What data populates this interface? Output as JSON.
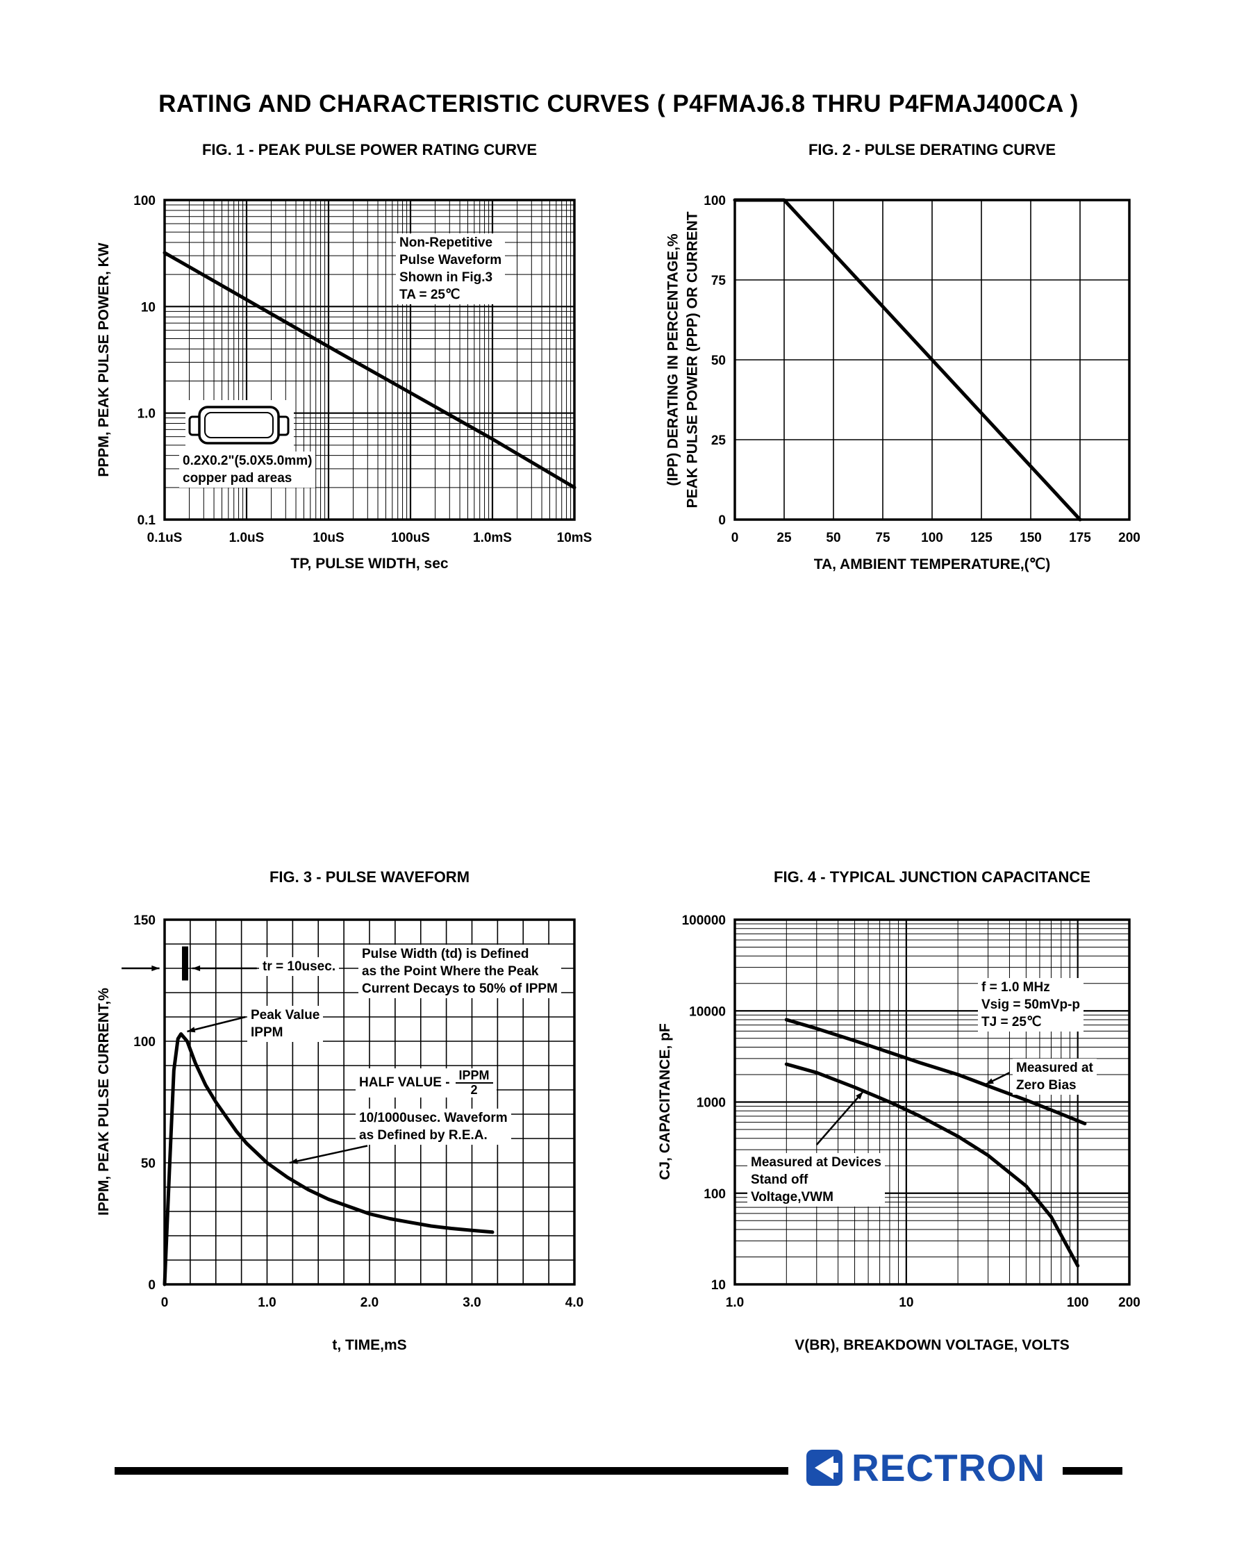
{
  "page": {
    "title": "RATING AND CHARACTERISTIC CURVES ( P4FMAJ6.8 THRU P4FMAJ400CA )"
  },
  "footer": {
    "brand": "RECTRON",
    "brand_color": "#1a4fae"
  },
  "chart_data": [
    {
      "id": "fig1",
      "type": "line",
      "title": "FIG. 1 - PEAK PULSE POWER RATING CURVE",
      "xlabel": "TP, PULSE WIDTH, sec",
      "ylabel": "PPPM, PEAK PULSE POWER, KW",
      "xscale": "log",
      "yscale": "log",
      "xlim": [
        1e-07,
        0.01
      ],
      "ylim": [
        0.1,
        100
      ],
      "grid": "log-minor",
      "legend": "none",
      "xticks": [
        {
          "v": 1e-07,
          "label": "0.1uS"
        },
        {
          "v": 1e-06,
          "label": "1.0uS"
        },
        {
          "v": 1e-05,
          "label": "10uS"
        },
        {
          "v": 0.0001,
          "label": "100uS"
        },
        {
          "v": 0.001,
          "label": "1.0mS"
        },
        {
          "v": 0.01,
          "label": "10mS"
        }
      ],
      "yticks": [
        {
          "v": 100,
          "label": "100"
        },
        {
          "v": 10,
          "label": "10"
        },
        {
          "v": 1,
          "label": "1.0"
        },
        {
          "v": 0.1,
          "label": "0.1"
        }
      ],
      "series": [
        {
          "name": "peak-pulse-power",
          "points": [
            [
              1e-07,
              32
            ],
            [
              1e-06,
              11.6
            ],
            [
              1e-05,
              4.2
            ],
            [
              0.0001,
              1.55
            ],
            [
              0.001,
              0.57
            ],
            [
              0.01,
              0.2
            ]
          ]
        }
      ],
      "annotations": {
        "condition_note": "Non-Repetitive\nPulse Waveform\nShown in Fig.3\nTA = 25℃",
        "pad_note": "0.2X0.2\"(5.0X5.0mm)\ncopper pad areas"
      }
    },
    {
      "id": "fig2",
      "type": "line",
      "title": "FIG. 2 - PULSE DERATING CURVE",
      "xlabel": "TA, AMBIENT TEMPERATURE,(℃)",
      "ylabel": "(IPP) DERATING IN PERCENTAGE,%\nPEAK PULSE POWER (PPP) OR CURRENT",
      "xscale": "linear",
      "yscale": "linear",
      "xlim": [
        0,
        200
      ],
      "ylim": [
        0,
        100
      ],
      "grid": "linear",
      "legend": "none",
      "xticks": [
        {
          "v": 0,
          "label": "0"
        },
        {
          "v": 25,
          "label": "25"
        },
        {
          "v": 50,
          "label": "50"
        },
        {
          "v": 75,
          "label": "75"
        },
        {
          "v": 100,
          "label": "100"
        },
        {
          "v": 125,
          "label": "125"
        },
        {
          "v": 150,
          "label": "150"
        },
        {
          "v": 175,
          "label": "175"
        },
        {
          "v": 200,
          "label": "200"
        }
      ],
      "yticks": [
        {
          "v": 0,
          "label": "0"
        },
        {
          "v": 25,
          "label": "25"
        },
        {
          "v": 50,
          "label": "50"
        },
        {
          "v": 75,
          "label": "75"
        },
        {
          "v": 100,
          "label": "100"
        }
      ],
      "series": [
        {
          "name": "pulse-derating",
          "points": [
            [
              0,
              100
            ],
            [
              25,
              100
            ],
            [
              175,
              0
            ]
          ]
        }
      ],
      "annotations": {}
    },
    {
      "id": "fig3",
      "type": "line",
      "title": "FIG. 3 - PULSE WAVEFORM",
      "xlabel": "t, TIME,mS",
      "ylabel": "IPPM, PEAK PULSE CURRENT,%",
      "xscale": "linear",
      "yscale": "linear",
      "xlim": [
        0,
        4
      ],
      "ylim": [
        0,
        150
      ],
      "grid": "linear",
      "legend": "none",
      "xticks": [
        {
          "v": 0,
          "label": "0"
        },
        {
          "v": 1,
          "label": "1.0"
        },
        {
          "v": 2,
          "label": "2.0"
        },
        {
          "v": 3,
          "label": "3.0"
        },
        {
          "v": 4,
          "label": "4.0"
        }
      ],
      "yticks": [
        {
          "v": 0,
          "label": "0"
        },
        {
          "v": 50,
          "label": "50"
        },
        {
          "v": 100,
          "label": "100"
        },
        {
          "v": 150,
          "label": "150"
        }
      ],
      "series": [
        {
          "name": "pulse-waveform",
          "points": [
            [
              0,
              0
            ],
            [
              0.05,
              50
            ],
            [
              0.09,
              88
            ],
            [
              0.13,
              101
            ],
            [
              0.16,
              103
            ],
            [
              0.22,
              100
            ],
            [
              0.3,
              91
            ],
            [
              0.4,
              82
            ],
            [
              0.5,
              75
            ],
            [
              0.6,
              69
            ],
            [
              0.7,
              63
            ],
            [
              0.8,
              58
            ],
            [
              0.9,
              54
            ],
            [
              1.0,
              50
            ],
            [
              1.2,
              44
            ],
            [
              1.4,
              39
            ],
            [
              1.6,
              35
            ],
            [
              1.8,
              32
            ],
            [
              2.0,
              29
            ],
            [
              2.2,
              27
            ],
            [
              2.4,
              25.5
            ],
            [
              2.6,
              24
            ],
            [
              2.8,
              23
            ],
            [
              3.0,
              22.2
            ],
            [
              3.2,
              21.5
            ]
          ]
        }
      ],
      "annotations": {
        "tr_note": "tr = 10usec.",
        "peak_note": "Peak Value\nIPPM",
        "pulse_width_note": "Pulse Width (td) is Defined\nas the Point Where the Peak\nCurrent Decays to 50% of IPPM",
        "half_value_prefix": "HALF VALUE -",
        "half_value_num": "IPPM",
        "half_value_den": "2",
        "rea_note": "10/1000usec. Waveform\nas Defined by R.E.A."
      }
    },
    {
      "id": "fig4",
      "type": "line",
      "title": "FIG. 4 - TYPICAL JUNCTION CAPACITANCE",
      "xlabel": "V(BR), BREAKDOWN VOLTAGE, VOLTS",
      "ylabel": "CJ, CAPACITANCE, pF",
      "xscale": "log",
      "yscale": "log",
      "xlim": [
        1,
        200
      ],
      "ylim": [
        10,
        100000
      ],
      "grid": "log-minor",
      "legend": "none",
      "xticks": [
        {
          "v": 1,
          "label": "1.0"
        },
        {
          "v": 10,
          "label": "10"
        },
        {
          "v": 100,
          "label": "100"
        },
        {
          "v": 200,
          "label": "200"
        }
      ],
      "yticks": [
        {
          "v": 10,
          "label": "10"
        },
        {
          "v": 100,
          "label": "100"
        },
        {
          "v": 1000,
          "label": "1000"
        },
        {
          "v": 10000,
          "label": "10000"
        },
        {
          "v": 100000,
          "label": "100000"
        }
      ],
      "series": [
        {
          "name": "measured-at-zero-bias",
          "points": [
            [
              2,
              8000
            ],
            [
              3,
              6400
            ],
            [
              5,
              4700
            ],
            [
              8,
              3500
            ],
            [
              12,
              2700
            ],
            [
              20,
              2000
            ],
            [
              30,
              1500
            ],
            [
              50,
              1050
            ],
            [
              80,
              740
            ],
            [
              110,
              580
            ]
          ]
        },
        {
          "name": "measured-at-standoff-voltage",
          "points": [
            [
              2,
              2600
            ],
            [
              3,
              2100
            ],
            [
              5,
              1450
            ],
            [
              8,
              1000
            ],
            [
              12,
              700
            ],
            [
              20,
              420
            ],
            [
              30,
              260
            ],
            [
              50,
              120
            ],
            [
              70,
              55
            ],
            [
              100,
              16
            ]
          ]
        }
      ],
      "annotations": {
        "condition_note": "f = 1.0 MHz\nVsig = 50mVp-p\nTJ = 25℃",
        "zero_bias_note": "Measured at\nZero Bias",
        "standoff_note": "Measured at Devices\nStand off\nVoltage,VWM"
      }
    }
  ]
}
